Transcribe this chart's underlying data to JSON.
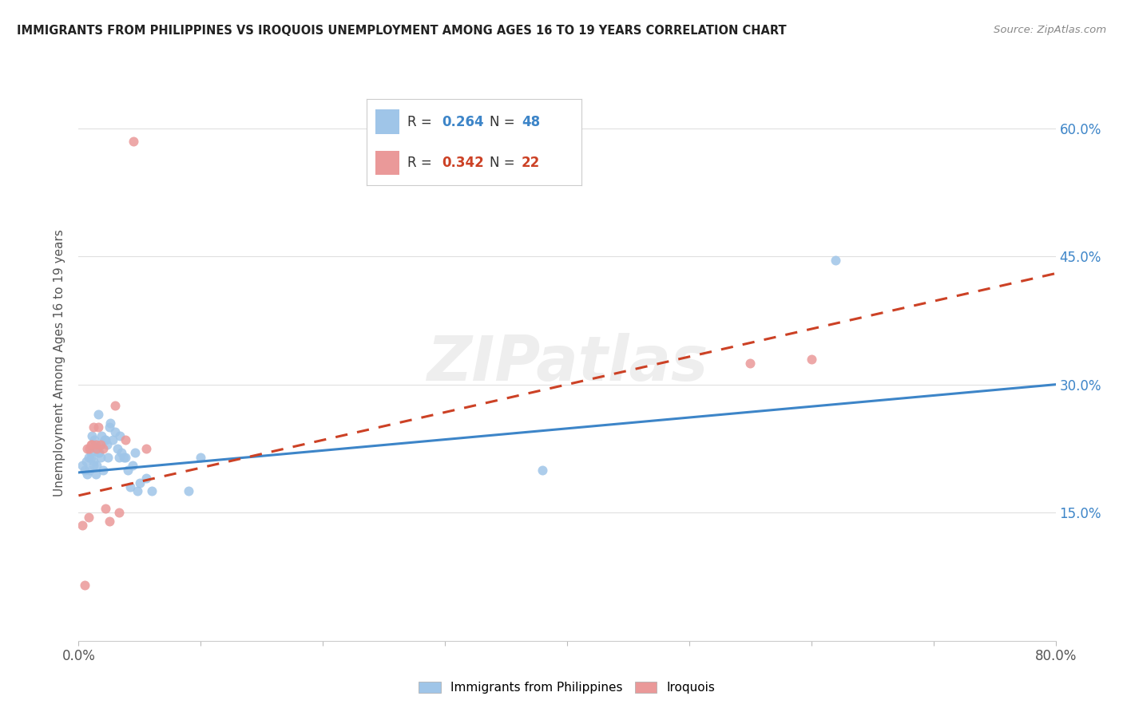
{
  "title": "IMMIGRANTS FROM PHILIPPINES VS IROQUOIS UNEMPLOYMENT AMONG AGES 16 TO 19 YEARS CORRELATION CHART",
  "source": "Source: ZipAtlas.com",
  "ylabel_label": "Unemployment Among Ages 16 to 19 years",
  "xlim": [
    0.0,
    0.8
  ],
  "ylim": [
    0.0,
    0.65
  ],
  "xtick_labels": [
    "0.0%",
    "",
    "",
    "",
    "",
    "",
    "",
    "",
    "80.0%"
  ],
  "xtick_values": [
    0.0,
    0.1,
    0.2,
    0.3,
    0.4,
    0.5,
    0.6,
    0.7,
    0.8
  ],
  "ytick_values": [
    0.15,
    0.3,
    0.45,
    0.6
  ],
  "right_ytick_labels": [
    "15.0%",
    "30.0%",
    "45.0%",
    "60.0%"
  ],
  "right_ytick_values": [
    0.15,
    0.3,
    0.45,
    0.6
  ],
  "blue_color": "#9fc5e8",
  "pink_color": "#ea9999",
  "blue_line_color": "#3d85c8",
  "pink_line_color": "#cc4125",
  "legend_blue_color": "#9fc5e8",
  "legend_pink_color": "#ea9999",
  "R_blue": 0.264,
  "N_blue": 48,
  "R_pink": 0.342,
  "N_pink": 22,
  "blue_scatter_x": [
    0.003,
    0.005,
    0.006,
    0.007,
    0.008,
    0.009,
    0.01,
    0.01,
    0.011,
    0.012,
    0.012,
    0.013,
    0.014,
    0.014,
    0.015,
    0.016,
    0.016,
    0.017,
    0.018,
    0.018,
    0.019,
    0.02,
    0.021,
    0.022,
    0.023,
    0.024,
    0.025,
    0.026,
    0.028,
    0.03,
    0.032,
    0.033,
    0.034,
    0.035,
    0.037,
    0.038,
    0.04,
    0.042,
    0.044,
    0.046,
    0.048,
    0.05,
    0.055,
    0.06,
    0.09,
    0.1,
    0.38,
    0.62
  ],
  "blue_scatter_y": [
    0.205,
    0.2,
    0.21,
    0.195,
    0.215,
    0.2,
    0.22,
    0.215,
    0.24,
    0.21,
    0.205,
    0.235,
    0.195,
    0.225,
    0.205,
    0.265,
    0.22,
    0.22,
    0.215,
    0.23,
    0.24,
    0.2,
    0.235,
    0.235,
    0.23,
    0.215,
    0.25,
    0.255,
    0.235,
    0.245,
    0.225,
    0.215,
    0.24,
    0.22,
    0.215,
    0.215,
    0.2,
    0.18,
    0.205,
    0.22,
    0.175,
    0.185,
    0.19,
    0.175,
    0.175,
    0.215,
    0.2,
    0.445
  ],
  "pink_scatter_x": [
    0.003,
    0.005,
    0.007,
    0.008,
    0.009,
    0.01,
    0.011,
    0.012,
    0.014,
    0.015,
    0.016,
    0.018,
    0.02,
    0.022,
    0.025,
    0.03,
    0.033,
    0.038,
    0.045,
    0.055,
    0.55,
    0.6
  ],
  "pink_scatter_y": [
    0.135,
    0.065,
    0.225,
    0.145,
    0.225,
    0.23,
    0.23,
    0.25,
    0.23,
    0.225,
    0.25,
    0.23,
    0.225,
    0.155,
    0.14,
    0.275,
    0.15,
    0.235,
    0.585,
    0.225,
    0.325,
    0.33
  ],
  "blue_trend_y_start": 0.197,
  "blue_trend_y_end": 0.3,
  "pink_trend_y_start": 0.17,
  "pink_trend_y_end": 0.43,
  "watermark": "ZIPatlas",
  "background_color": "#ffffff",
  "grid_color": "#e0e0e0"
}
